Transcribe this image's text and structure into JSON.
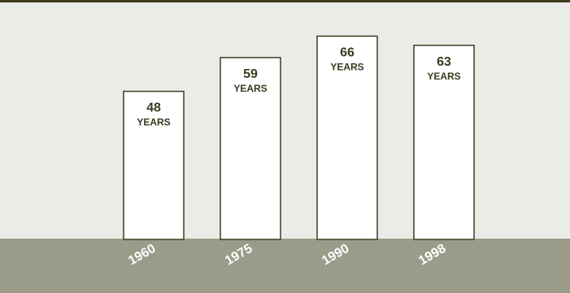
{
  "chart_data": {
    "type": "bar",
    "categories": [
      "1960",
      "1975",
      "1990",
      "1998"
    ],
    "values": [
      48,
      59,
      66,
      63
    ],
    "unit_label": "YEARS",
    "title": "",
    "xlabel": "",
    "ylabel": "",
    "grid": false,
    "legend": "none"
  },
  "colors": {
    "background": "#ebebe7",
    "top_rule": "#3f3d1c",
    "ground": "#9b9b8a",
    "bar_fill": "#ffffff",
    "bar_stroke": "#3f3d1c",
    "text_dark": "#3a3a1f",
    "text_light": "#ffffff"
  }
}
